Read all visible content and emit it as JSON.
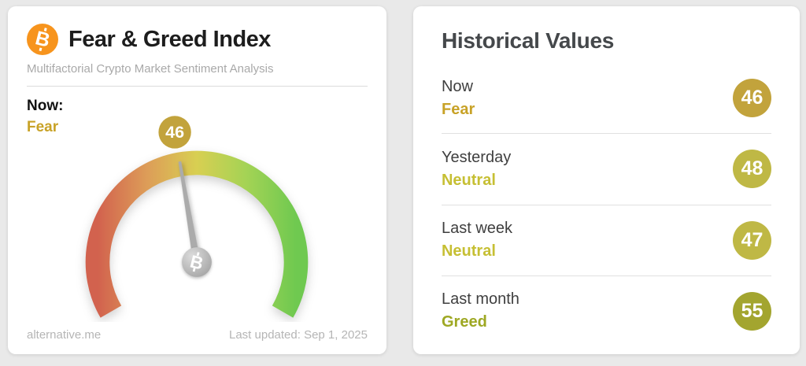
{
  "left_card": {
    "icon_letter": "B",
    "title": "Fear & Greed Index",
    "subtitle": "Multifactorial Crypto Market Sentiment Analysis",
    "now_label": "Now:",
    "now_classification": "Fear",
    "now_color": "#c8a227",
    "footer_source": "alternative.me",
    "footer_updated": "Last updated: Sep 1, 2025"
  },
  "right_card": {
    "title": "Historical Values",
    "rows": [
      {
        "label": "Now",
        "classification": "Fear",
        "value": "46",
        "text_color": "#c8a227",
        "badge_color": "#c2a33c"
      },
      {
        "label": "Yesterday",
        "classification": "Neutral",
        "value": "48",
        "text_color": "#c6bf33",
        "badge_color": "#bfb845"
      },
      {
        "label": "Last week",
        "classification": "Neutral",
        "value": "47",
        "text_color": "#c6bf33",
        "badge_color": "#bfb845"
      },
      {
        "label": "Last month",
        "classification": "Greed",
        "value": "55",
        "text_color": "#9ea823",
        "badge_color": "#a3a52f"
      }
    ]
  },
  "chart_data": {
    "type": "gauge",
    "title": "Fear & Greed Index",
    "value": 46,
    "min": 0,
    "max": 100,
    "classification": "Fear",
    "badge_color": "#c2a33c",
    "needle_color": "#ababab",
    "arc_colors": [
      "#d2624e",
      "#dd9d58",
      "#d8cf52",
      "#a4d355",
      "#6fc950"
    ],
    "historical": [
      {
        "label": "Now",
        "value": 46,
        "classification": "Fear"
      },
      {
        "label": "Yesterday",
        "value": 48,
        "classification": "Neutral"
      },
      {
        "label": "Last week",
        "value": 47,
        "classification": "Neutral"
      },
      {
        "label": "Last month",
        "value": 55,
        "classification": "Greed"
      }
    ]
  }
}
